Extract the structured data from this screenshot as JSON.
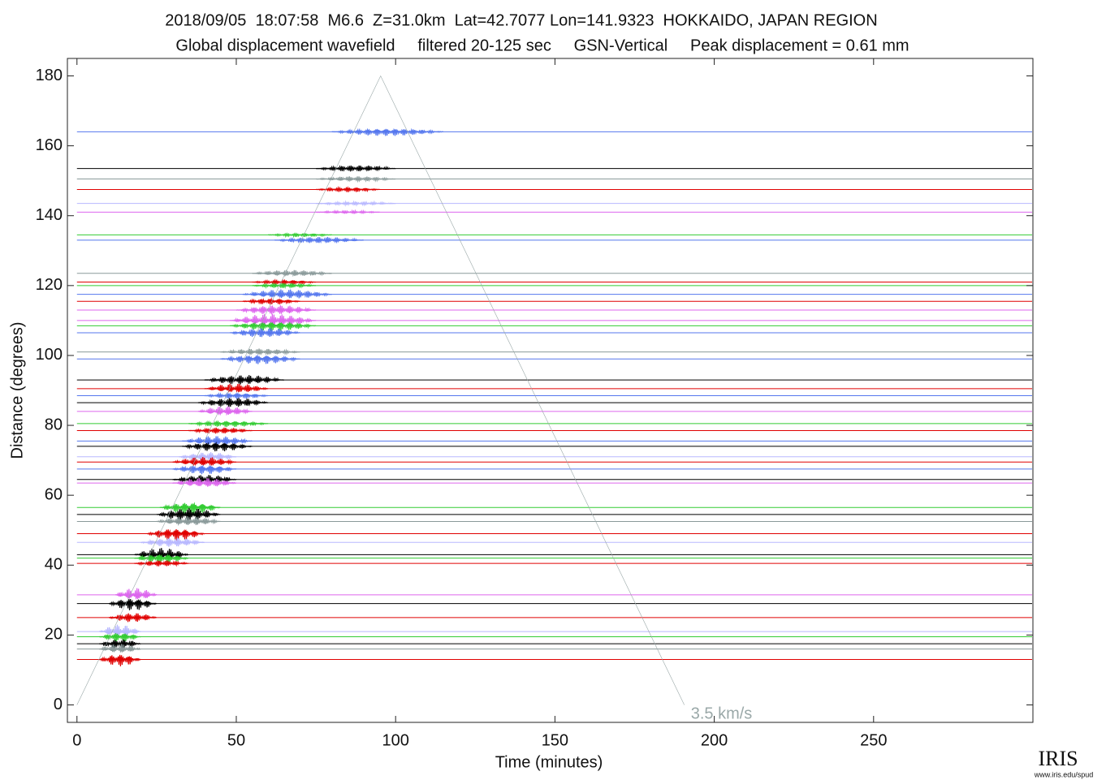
{
  "chart_data": {
    "type": "record-section",
    "title": "2018/09/05  18:07:58  M6.6  Z=31.0km  Lat=42.7077 Lon=141.9323  HOKKAIDO, JAPAN REGION",
    "subtitle": "Global displacement wavefield     filtered 20-125 sec     GSN-Vertical     Peak displacement = 0.61 mm",
    "x_label": "Time (minutes)",
    "y_label": "Distance (degrees)",
    "xlim": [
      -3,
      300
    ],
    "ylim": [
      -5,
      185
    ],
    "xticks": [
      0,
      50,
      100,
      150,
      200,
      250
    ],
    "yticks": [
      0,
      20,
      40,
      60,
      80,
      100,
      120,
      140,
      160,
      180
    ],
    "traces": [
      {
        "distance": 164,
        "color": "#5577ee",
        "onset": 80,
        "end": 115,
        "amplitude": 1.2
      },
      {
        "distance": 153.5,
        "color": "#000000",
        "onset": 75,
        "end": 100,
        "amplitude": 1
      },
      {
        "distance": 150.5,
        "color": "#8a9a9a",
        "onset": 75,
        "end": 100,
        "amplitude": 0.8
      },
      {
        "distance": 147.5,
        "color": "#e00000",
        "onset": 75,
        "end": 95,
        "amplitude": 0.8
      },
      {
        "distance": 143.5,
        "color": "#b8b8ff",
        "onset": 75,
        "end": 100,
        "amplitude": 0.6
      },
      {
        "distance": 141,
        "color": "#dd66ee",
        "onset": 75,
        "end": 95,
        "amplitude": 0.5
      },
      {
        "distance": 134.5,
        "color": "#33cc33",
        "onset": 60,
        "end": 80,
        "amplitude": 0.6
      },
      {
        "distance": 133,
        "color": "#5577ee",
        "onset": 62,
        "end": 90,
        "amplitude": 1
      },
      {
        "distance": 123.5,
        "color": "#8a9a9a",
        "onset": 55,
        "end": 80,
        "amplitude": 1
      },
      {
        "distance": 121,
        "color": "#e00000",
        "onset": 55,
        "end": 75,
        "amplitude": 0.8
      },
      {
        "distance": 120,
        "color": "#33cc33",
        "onset": 55,
        "end": 75,
        "amplitude": 0.8
      },
      {
        "distance": 117.5,
        "color": "#5577ee",
        "onset": 52,
        "end": 80,
        "amplitude": 1.5
      },
      {
        "distance": 115.5,
        "color": "#e00000",
        "onset": 52,
        "end": 70,
        "amplitude": 1
      },
      {
        "distance": 113,
        "color": "#dd66ee",
        "onset": 50,
        "end": 75,
        "amplitude": 1.5
      },
      {
        "distance": 110,
        "color": "#dd66ee",
        "onset": 48,
        "end": 75,
        "amplitude": 2
      },
      {
        "distance": 108.5,
        "color": "#33cc33",
        "onset": 48,
        "end": 75,
        "amplitude": 1.5
      },
      {
        "distance": 106.5,
        "color": "#5577ee",
        "onset": 48,
        "end": 70,
        "amplitude": 1.5
      },
      {
        "distance": 101,
        "color": "#8a9a9a",
        "onset": 45,
        "end": 70,
        "amplitude": 1
      },
      {
        "distance": 99,
        "color": "#5577ee",
        "onset": 45,
        "end": 70,
        "amplitude": 1.5
      },
      {
        "distance": 93,
        "color": "#000000",
        "onset": 40,
        "end": 65,
        "amplitude": 1.5
      },
      {
        "distance": 90.5,
        "color": "#e00000",
        "onset": 40,
        "end": 60,
        "amplitude": 1.5
      },
      {
        "distance": 88.5,
        "color": "#5577ee",
        "onset": 40,
        "end": 60,
        "amplitude": 1
      },
      {
        "distance": 86.5,
        "color": "#000000",
        "onset": 38,
        "end": 60,
        "amplitude": 1.5
      },
      {
        "distance": 84,
        "color": "#dd66ee",
        "onset": 38,
        "end": 55,
        "amplitude": 1.5
      },
      {
        "distance": 80.5,
        "color": "#33cc33",
        "onset": 35,
        "end": 60,
        "amplitude": 1
      },
      {
        "distance": 78.5,
        "color": "#e00000",
        "onset": 35,
        "end": 55,
        "amplitude": 1
      },
      {
        "distance": 75.5,
        "color": "#5577ee",
        "onset": 33,
        "end": 55,
        "amplitude": 1.5
      },
      {
        "distance": 74,
        "color": "#000000",
        "onset": 33,
        "end": 55,
        "amplitude": 1.5
      },
      {
        "distance": 71,
        "color": "#b8b8ff",
        "onset": 32,
        "end": 50,
        "amplitude": 1.5
      },
      {
        "distance": 69.5,
        "color": "#e00000",
        "onset": 30,
        "end": 50,
        "amplitude": 1.5
      },
      {
        "distance": 67.5,
        "color": "#5577ee",
        "onset": 30,
        "end": 50,
        "amplitude": 1.5
      },
      {
        "distance": 64.5,
        "color": "#000000",
        "onset": 30,
        "end": 50,
        "amplitude": 1.5
      },
      {
        "distance": 63.5,
        "color": "#dd66ee",
        "onset": 30,
        "end": 50,
        "amplitude": 1.5
      },
      {
        "distance": 56.5,
        "color": "#33cc33",
        "onset": 26,
        "end": 45,
        "amplitude": 2
      },
      {
        "distance": 54.5,
        "color": "#000000",
        "onset": 25,
        "end": 45,
        "amplitude": 2
      },
      {
        "distance": 52.5,
        "color": "#8a9a9a",
        "onset": 25,
        "end": 45,
        "amplitude": 1.5
      },
      {
        "distance": 49,
        "color": "#e00000",
        "onset": 22,
        "end": 40,
        "amplitude": 2
      },
      {
        "distance": 46.5,
        "color": "#b8b8ff",
        "onset": 20,
        "end": 40,
        "amplitude": 1.5
      },
      {
        "distance": 43,
        "color": "#000000",
        "onset": 18,
        "end": 35,
        "amplitude": 2
      },
      {
        "distance": 42,
        "color": "#33cc33",
        "onset": 18,
        "end": 35,
        "amplitude": 1.5
      },
      {
        "distance": 40.5,
        "color": "#e00000",
        "onset": 18,
        "end": 35,
        "amplitude": 1
      },
      {
        "distance": 31.5,
        "color": "#dd66ee",
        "onset": 12,
        "end": 25,
        "amplitude": 2
      },
      {
        "distance": 29,
        "color": "#000000",
        "onset": 10,
        "end": 25,
        "amplitude": 2
      },
      {
        "distance": 25,
        "color": "#e00000",
        "onset": 10,
        "end": 25,
        "amplitude": 1.5
      },
      {
        "distance": 21,
        "color": "#b8b8ff",
        "onset": 7,
        "end": 20,
        "amplitude": 2
      },
      {
        "distance": 19.5,
        "color": "#33cc33",
        "onset": 7,
        "end": 20,
        "amplitude": 1.5
      },
      {
        "distance": 17.5,
        "color": "#000000",
        "onset": 7,
        "end": 20,
        "amplitude": 1.5
      },
      {
        "distance": 16,
        "color": "#8a9a9a",
        "onset": 7,
        "end": 20,
        "amplitude": 1.5
      },
      {
        "distance": 13,
        "color": "#e00000",
        "onset": 7,
        "end": 20,
        "amplitude": 2
      }
    ],
    "curve": {
      "label": "3.5 km/s",
      "color": "#9aa8a8",
      "x": [
        0,
        95.3,
        190.6
      ],
      "y": [
        0,
        180,
        0
      ]
    }
  },
  "logo": {
    "text": "IRIS",
    "url": "www.iris.edu/spud"
  }
}
